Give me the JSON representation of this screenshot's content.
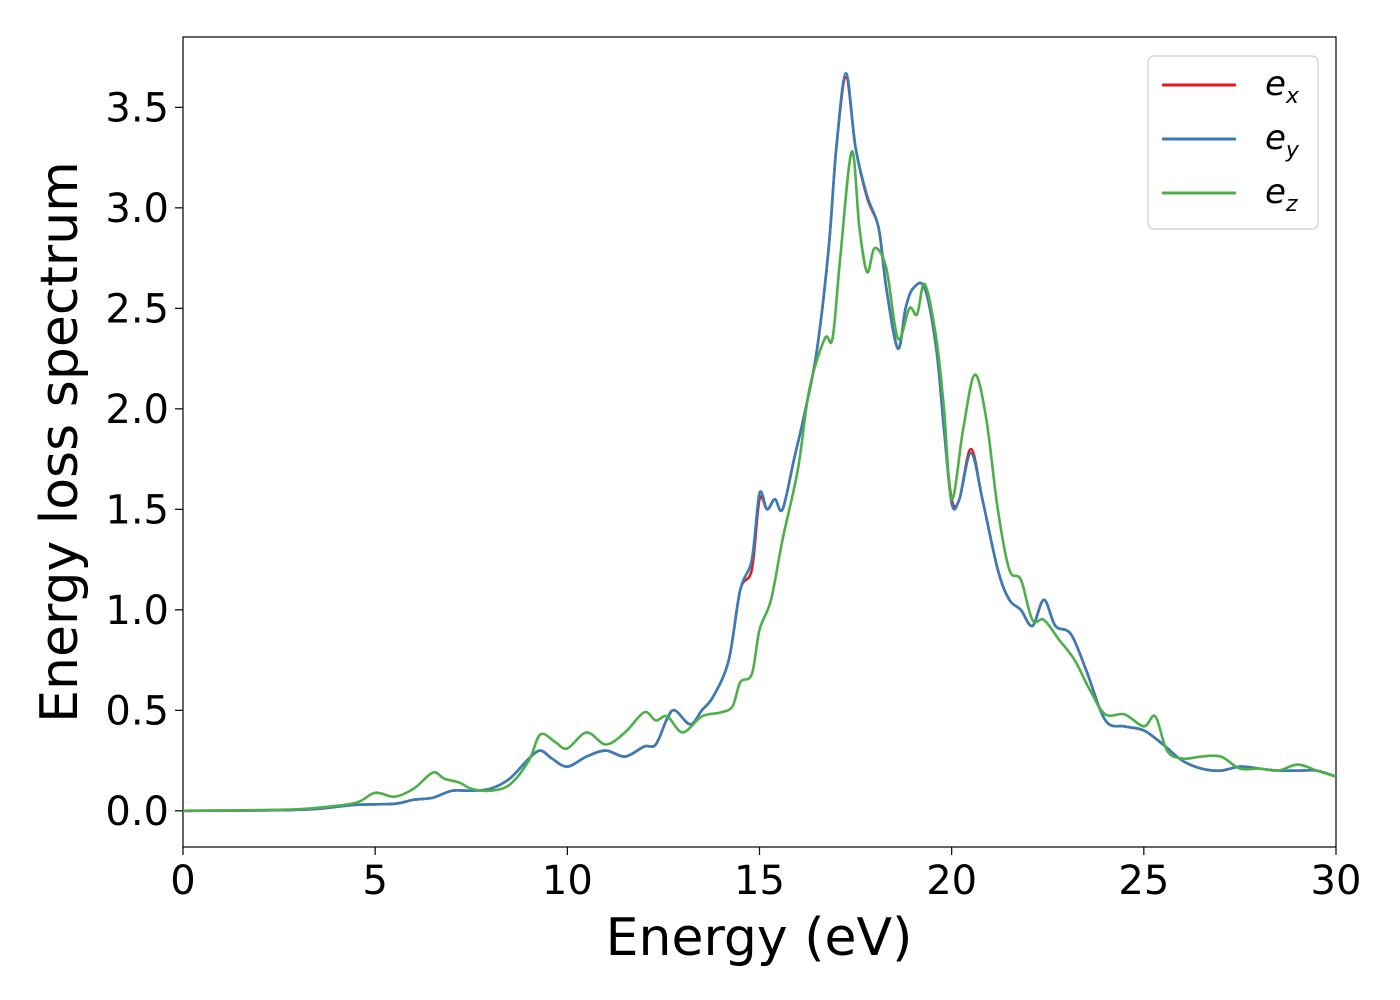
{
  "chart_data": {
    "type": "line",
    "title": "",
    "xlabel": "Energy (eV)",
    "ylabel": "Energy loss spectrum",
    "xlim": [
      0,
      30
    ],
    "ylim": [
      -0.18,
      3.85
    ],
    "xticks": [
      0,
      5,
      10,
      15,
      20,
      25,
      30
    ],
    "xtick_labels": [
      "0",
      "5",
      "10",
      "15",
      "20",
      "25",
      "30"
    ],
    "yticks": [
      0.0,
      0.5,
      1.0,
      1.5,
      2.0,
      2.5,
      3.0,
      3.5
    ],
    "ytick_labels": [
      "0.0",
      "0.5",
      "1.0",
      "1.5",
      "2.0",
      "2.5",
      "3.0",
      "3.5"
    ],
    "grid": false,
    "legend": "top-right",
    "series": [
      {
        "name": "e",
        "subscript": "x",
        "color": "#e41a1c",
        "points": [
          [
            0,
            0
          ],
          [
            2.5,
            0.003
          ],
          [
            3.5,
            0.01
          ],
          [
            4.5,
            0.03
          ],
          [
            5.5,
            0.035
          ],
          [
            6,
            0.055
          ],
          [
            6.5,
            0.065
          ],
          [
            7,
            0.1
          ],
          [
            7.5,
            0.1
          ],
          [
            8,
            0.11
          ],
          [
            8.5,
            0.16
          ],
          [
            9,
            0.26
          ],
          [
            9.3,
            0.3
          ],
          [
            9.6,
            0.26
          ],
          [
            10,
            0.22
          ],
          [
            10.5,
            0.27
          ],
          [
            11,
            0.3
          ],
          [
            11.5,
            0.27
          ],
          [
            12,
            0.32
          ],
          [
            12.3,
            0.33
          ],
          [
            12.6,
            0.46
          ],
          [
            12.8,
            0.5
          ],
          [
            13.2,
            0.43
          ],
          [
            13.5,
            0.5
          ],
          [
            13.8,
            0.57
          ],
          [
            14.2,
            0.75
          ],
          [
            14.5,
            1.1
          ],
          [
            14.8,
            1.2
          ],
          [
            15,
            1.55
          ],
          [
            15.2,
            1.5
          ],
          [
            15.4,
            1.55
          ],
          [
            15.6,
            1.5
          ],
          [
            15.9,
            1.75
          ],
          [
            16.2,
            2.0
          ],
          [
            16.5,
            2.3
          ],
          [
            16.8,
            2.8
          ],
          [
            17,
            3.3
          ],
          [
            17.25,
            3.65
          ],
          [
            17.5,
            3.3
          ],
          [
            17.8,
            3.05
          ],
          [
            18.1,
            2.9
          ],
          [
            18.3,
            2.6
          ],
          [
            18.6,
            2.3
          ],
          [
            18.8,
            2.5
          ],
          [
            19,
            2.6
          ],
          [
            19.3,
            2.6
          ],
          [
            19.6,
            2.3
          ],
          [
            19.8,
            1.9
          ],
          [
            20,
            1.55
          ],
          [
            20.2,
            1.55
          ],
          [
            20.5,
            1.8
          ],
          [
            20.8,
            1.55
          ],
          [
            21.2,
            1.2
          ],
          [
            21.5,
            1.05
          ],
          [
            21.8,
            1.0
          ],
          [
            22.1,
            0.92
          ],
          [
            22.4,
            1.05
          ],
          [
            22.7,
            0.92
          ],
          [
            23.1,
            0.88
          ],
          [
            23.5,
            0.7
          ],
          [
            24,
            0.45
          ],
          [
            24.5,
            0.42
          ],
          [
            25,
            0.4
          ],
          [
            25.5,
            0.33
          ],
          [
            26,
            0.25
          ],
          [
            26.5,
            0.21
          ],
          [
            27,
            0.2
          ],
          [
            27.5,
            0.22
          ],
          [
            28,
            0.21
          ],
          [
            28.5,
            0.2
          ],
          [
            29,
            0.2
          ],
          [
            29.5,
            0.2
          ],
          [
            30,
            0.17
          ]
        ]
      },
      {
        "name": "e",
        "subscript": "y",
        "color": "#377eb8",
        "points": [
          [
            0,
            0
          ],
          [
            2.5,
            0.003
          ],
          [
            3.5,
            0.01
          ],
          [
            4.5,
            0.03
          ],
          [
            5.5,
            0.035
          ],
          [
            6,
            0.055
          ],
          [
            6.5,
            0.065
          ],
          [
            7,
            0.1
          ],
          [
            7.5,
            0.1
          ],
          [
            8,
            0.11
          ],
          [
            8.5,
            0.16
          ],
          [
            9,
            0.26
          ],
          [
            9.3,
            0.3
          ],
          [
            9.6,
            0.26
          ],
          [
            10,
            0.22
          ],
          [
            10.5,
            0.27
          ],
          [
            11,
            0.3
          ],
          [
            11.5,
            0.27
          ],
          [
            12,
            0.32
          ],
          [
            12.3,
            0.33
          ],
          [
            12.6,
            0.46
          ],
          [
            12.8,
            0.5
          ],
          [
            13.2,
            0.43
          ],
          [
            13.5,
            0.5
          ],
          [
            13.8,
            0.57
          ],
          [
            14.2,
            0.75
          ],
          [
            14.5,
            1.1
          ],
          [
            14.8,
            1.25
          ],
          [
            15,
            1.58
          ],
          [
            15.2,
            1.5
          ],
          [
            15.4,
            1.55
          ],
          [
            15.6,
            1.5
          ],
          [
            15.9,
            1.75
          ],
          [
            16.2,
            2.0
          ],
          [
            16.5,
            2.3
          ],
          [
            16.8,
            2.8
          ],
          [
            17,
            3.3
          ],
          [
            17.25,
            3.67
          ],
          [
            17.5,
            3.3
          ],
          [
            17.8,
            3.06
          ],
          [
            18.1,
            2.9
          ],
          [
            18.3,
            2.6
          ],
          [
            18.6,
            2.3
          ],
          [
            18.8,
            2.5
          ],
          [
            19,
            2.6
          ],
          [
            19.3,
            2.6
          ],
          [
            19.6,
            2.3
          ],
          [
            19.8,
            1.9
          ],
          [
            20,
            1.53
          ],
          [
            20.2,
            1.55
          ],
          [
            20.5,
            1.78
          ],
          [
            20.8,
            1.55
          ],
          [
            21.2,
            1.2
          ],
          [
            21.5,
            1.05
          ],
          [
            21.8,
            1.0
          ],
          [
            22.1,
            0.92
          ],
          [
            22.4,
            1.05
          ],
          [
            22.7,
            0.92
          ],
          [
            23.1,
            0.88
          ],
          [
            23.5,
            0.7
          ],
          [
            24,
            0.45
          ],
          [
            24.5,
            0.42
          ],
          [
            25,
            0.4
          ],
          [
            25.5,
            0.33
          ],
          [
            26,
            0.25
          ],
          [
            26.5,
            0.21
          ],
          [
            27,
            0.2
          ],
          [
            27.5,
            0.22
          ],
          [
            28,
            0.21
          ],
          [
            28.5,
            0.2
          ],
          [
            29,
            0.2
          ],
          [
            29.5,
            0.2
          ],
          [
            30,
            0.17
          ]
        ]
      },
      {
        "name": "e",
        "subscript": "z",
        "color": "#4daf4a",
        "points": [
          [
            0,
            0
          ],
          [
            2.5,
            0.005
          ],
          [
            3.5,
            0.015
          ],
          [
            4.5,
            0.04
          ],
          [
            5,
            0.09
          ],
          [
            5.5,
            0.07
          ],
          [
            6,
            0.11
          ],
          [
            6.5,
            0.19
          ],
          [
            6.8,
            0.16
          ],
          [
            7.2,
            0.14
          ],
          [
            7.5,
            0.11
          ],
          [
            8,
            0.1
          ],
          [
            8.5,
            0.13
          ],
          [
            9,
            0.25
          ],
          [
            9.3,
            0.38
          ],
          [
            9.7,
            0.34
          ],
          [
            10,
            0.31
          ],
          [
            10.5,
            0.39
          ],
          [
            11,
            0.33
          ],
          [
            11.5,
            0.39
          ],
          [
            12,
            0.49
          ],
          [
            12.3,
            0.45
          ],
          [
            12.6,
            0.47
          ],
          [
            13,
            0.39
          ],
          [
            13.5,
            0.47
          ],
          [
            14,
            0.49
          ],
          [
            14.3,
            0.52
          ],
          [
            14.5,
            0.64
          ],
          [
            14.8,
            0.68
          ],
          [
            15,
            0.9
          ],
          [
            15.3,
            1.05
          ],
          [
            15.6,
            1.35
          ],
          [
            16,
            1.7
          ],
          [
            16.3,
            2.1
          ],
          [
            16.7,
            2.35
          ],
          [
            16.9,
            2.35
          ],
          [
            17.1,
            2.75
          ],
          [
            17.4,
            3.28
          ],
          [
            17.6,
            2.9
          ],
          [
            17.8,
            2.68
          ],
          [
            18,
            2.8
          ],
          [
            18.3,
            2.7
          ],
          [
            18.6,
            2.35
          ],
          [
            18.9,
            2.5
          ],
          [
            19.1,
            2.47
          ],
          [
            19.3,
            2.62
          ],
          [
            19.6,
            2.35
          ],
          [
            19.8,
            2.0
          ],
          [
            20,
            1.55
          ],
          [
            20.3,
            1.9
          ],
          [
            20.6,
            2.17
          ],
          [
            20.9,
            1.95
          ],
          [
            21.2,
            1.5
          ],
          [
            21.5,
            1.2
          ],
          [
            21.8,
            1.15
          ],
          [
            22.1,
            0.95
          ],
          [
            22.4,
            0.95
          ],
          [
            22.8,
            0.85
          ],
          [
            23.2,
            0.75
          ],
          [
            23.6,
            0.6
          ],
          [
            24,
            0.48
          ],
          [
            24.5,
            0.48
          ],
          [
            25,
            0.42
          ],
          [
            25.3,
            0.47
          ],
          [
            25.6,
            0.3
          ],
          [
            26,
            0.26
          ],
          [
            26.5,
            0.27
          ],
          [
            27,
            0.27
          ],
          [
            27.5,
            0.21
          ],
          [
            28,
            0.21
          ],
          [
            28.5,
            0.2
          ],
          [
            29,
            0.23
          ],
          [
            29.5,
            0.2
          ],
          [
            30,
            0.17
          ]
        ]
      }
    ]
  }
}
